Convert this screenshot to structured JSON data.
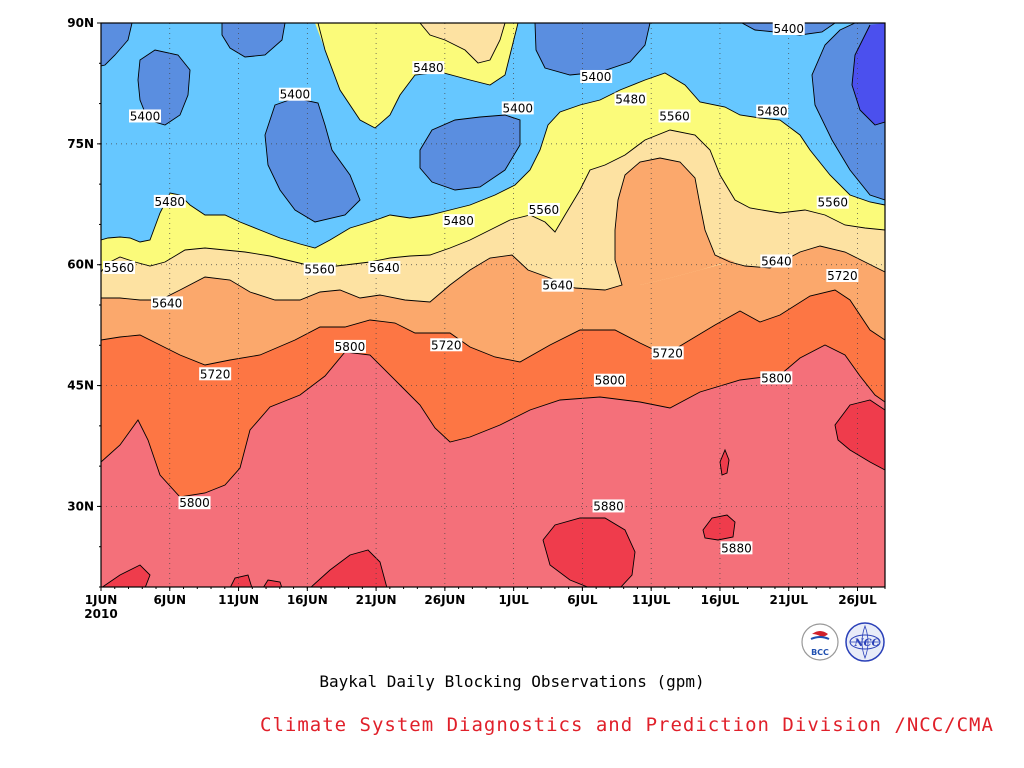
{
  "chart_data": {
    "type": "contour",
    "x_ticks": [
      "1JUN",
      "6JUN",
      "11JUN",
      "16JUN",
      "21JUN",
      "26JUN",
      "1JUL",
      "6JUL",
      "11JUL",
      "16JUL",
      "21JUL",
      "26JUL"
    ],
    "x_year_label": "2010",
    "y_ticks": [
      "30N",
      "45N",
      "60N",
      "75N",
      "90N"
    ],
    "y_range": [
      20,
      90
    ],
    "x_days": [
      1,
      58
    ],
    "levels": [
      5400,
      5480,
      5560,
      5640,
      5720,
      5800,
      5880
    ],
    "contour_labels": [
      {
        "value": "5400",
        "day": 4.2,
        "lat": 78.4
      },
      {
        "value": "5400",
        "day": 15.1,
        "lat": 81.1
      },
      {
        "value": "5400",
        "day": 37.0,
        "lat": 83.3
      },
      {
        "value": "5400",
        "day": 31.3,
        "lat": 79.4
      },
      {
        "value": "5400",
        "day": 51.0,
        "lat": 90.0
      },
      {
        "value": "5480",
        "day": 6.0,
        "lat": 67.8
      },
      {
        "value": "5480",
        "day": 24.8,
        "lat": 84.4
      },
      {
        "value": "5480",
        "day": 27.0,
        "lat": 65.4
      },
      {
        "value": "5480",
        "day": 39.5,
        "lat": 80.5
      },
      {
        "value": "5480",
        "day": 49.8,
        "lat": 79.0
      },
      {
        "value": "5560",
        "day": 1.2,
        "lat": 59.6
      },
      {
        "value": "5560",
        "day": 16.9,
        "lat": 59.4
      },
      {
        "value": "5560",
        "day": 33.2,
        "lat": 66.8
      },
      {
        "value": "5560",
        "day": 42.7,
        "lat": 78.4
      },
      {
        "value": "5560",
        "day": 54.2,
        "lat": 67.7
      },
      {
        "value": "5640",
        "day": 5.8,
        "lat": 55.2
      },
      {
        "value": "5640",
        "day": 21.6,
        "lat": 59.6
      },
      {
        "value": "5640",
        "day": 34.2,
        "lat": 57.4
      },
      {
        "value": "5640",
        "day": 50.1,
        "lat": 60.4
      },
      {
        "value": "5720",
        "day": 9.3,
        "lat": 46.4
      },
      {
        "value": "5720",
        "day": 26.1,
        "lat": 50.0
      },
      {
        "value": "5720",
        "day": 42.2,
        "lat": 49.0
      },
      {
        "value": "5720",
        "day": 54.9,
        "lat": 58.6
      },
      {
        "value": "5800",
        "day": 7.8,
        "lat": 30.4
      },
      {
        "value": "5800",
        "day": 19.1,
        "lat": 49.8
      },
      {
        "value": "5800",
        "day": 38.0,
        "lat": 45.6
      },
      {
        "value": "5800",
        "day": 50.1,
        "lat": 45.9
      },
      {
        "value": "5880",
        "day": 37.9,
        "lat": 30.0
      },
      {
        "value": "5880",
        "day": 47.2,
        "lat": 24.8
      }
    ]
  },
  "title": "Baykal Daily Blocking Observations (gpm)",
  "credit": "Climate System Diagnostics and Prediction Division /NCC/CMA",
  "logos": [
    {
      "name": "bcc-logo",
      "text": "BCC"
    },
    {
      "name": "ncc-logo",
      "text": "NCC"
    }
  ],
  "colors": {
    "below_5400_deep": "#4b50ee",
    "below_5400_mid": "#5a8ee0",
    "band_5400_5480": "#66c7ff",
    "band_5480_5560": "#fbfb7a",
    "band_5560_5640": "#fde2a2",
    "band_5640_5720": "#fba86c",
    "band_5720_5800": "#fd7644",
    "band_5800_5880": "#f4707a",
    "above_5880": "#ef3c4c",
    "credit_red": "#e0202a"
  }
}
